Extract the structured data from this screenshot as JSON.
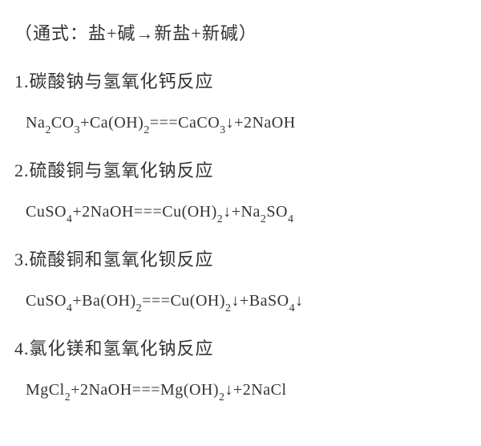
{
  "header": {
    "formula": "（通式：盐+碱→新盐+新碱）"
  },
  "reactions": [
    {
      "number": "1",
      "title": "碳酸钠与氢氧化钙反应",
      "equation_parts": [
        {
          "text": "Na",
          "sub": false
        },
        {
          "text": "2",
          "sub": true
        },
        {
          "text": "CO",
          "sub": false
        },
        {
          "text": "3",
          "sub": true
        },
        {
          "text": "+Ca(OH)",
          "sub": false
        },
        {
          "text": "2",
          "sub": true
        },
        {
          "text": "===CaCO",
          "sub": false
        },
        {
          "text": "3",
          "sub": true
        },
        {
          "text": "↓+2NaOH",
          "sub": false
        }
      ]
    },
    {
      "number": "2",
      "title": "硫酸铜与氢氧化钠反应",
      "equation_parts": [
        {
          "text": "CuSO",
          "sub": false
        },
        {
          "text": "4",
          "sub": true
        },
        {
          "text": "+2NaOH===Cu(OH)",
          "sub": false
        },
        {
          "text": "2",
          "sub": true
        },
        {
          "text": "↓+Na",
          "sub": false
        },
        {
          "text": "2",
          "sub": true
        },
        {
          "text": "SO",
          "sub": false
        },
        {
          "text": "4",
          "sub": true
        }
      ]
    },
    {
      "number": "3",
      "title": "硫酸铜和氢氧化钡反应",
      "equation_parts": [
        {
          "text": "CuSO",
          "sub": false
        },
        {
          "text": "4",
          "sub": true
        },
        {
          "text": "+Ba(OH)",
          "sub": false
        },
        {
          "text": "2",
          "sub": true
        },
        {
          "text": "===Cu(OH)",
          "sub": false
        },
        {
          "text": "2",
          "sub": true
        },
        {
          "text": "↓+BaSO",
          "sub": false
        },
        {
          "text": "4",
          "sub": true
        },
        {
          "text": "↓",
          "sub": false
        }
      ]
    },
    {
      "number": "4",
      "title": "氯化镁和氢氧化钠反应",
      "equation_parts": [
        {
          "text": "MgCl",
          "sub": false
        },
        {
          "text": "2",
          "sub": true
        },
        {
          "text": "+2NaOH===Mg(OH)",
          "sub": false
        },
        {
          "text": "2",
          "sub": true
        },
        {
          "text": "↓+2NaCl",
          "sub": false
        }
      ]
    }
  ],
  "styles": {
    "background_color": "#ffffff",
    "text_color": "#333333",
    "title_fontsize": 22,
    "equation_fontsize": 20,
    "sub_fontsize": 14
  }
}
